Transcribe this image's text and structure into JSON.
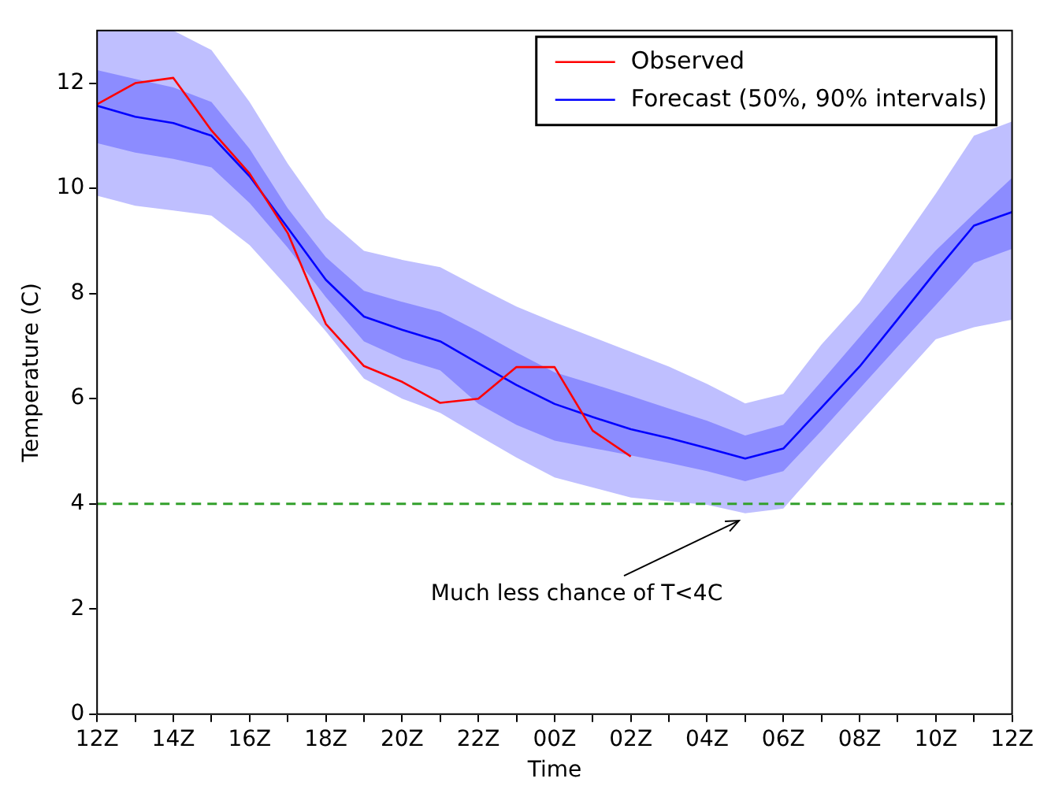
{
  "chart_data": {
    "type": "line",
    "xlabel": "Time",
    "ylabel": "Temperature (C)",
    "categories": [
      "12Z",
      null,
      "14Z",
      null,
      "16Z",
      null,
      "18Z",
      null,
      "20Z",
      null,
      "22Z",
      null,
      "00Z",
      null,
      "02Z",
      null,
      "04Z",
      null,
      "06Z",
      null,
      "08Z",
      null,
      "10Z",
      null,
      "12Z"
    ],
    "ylim": [
      0,
      13
    ],
    "yticks": [
      0,
      2,
      4,
      6,
      8,
      10,
      12
    ],
    "series": [
      {
        "color": "#0000ff",
        "values": [
          null,
          null,
          null,
          null,
          null,
          null,
          null,
          null,
          null,
          null,
          null,
          null,
          null,
          null,
          null,
          null,
          null,
          null,
          null,
          null,
          null,
          null,
          null,
          null,
          null
        ],
        "lower": [
          9.86,
          9.67,
          9.58,
          9.48,
          8.92,
          8.12,
          7.28,
          6.38,
          6.0,
          5.73,
          5.3,
          4.88,
          4.5,
          4.31,
          4.12,
          4.05,
          3.98,
          3.82,
          3.91,
          4.73,
          5.53,
          6.33,
          7.13,
          7.36,
          7.5
        ],
        "upper": [
          13,
          13,
          13,
          12.63,
          11.64,
          10.47,
          9.44,
          8.81,
          8.64,
          8.5,
          8.12,
          7.75,
          7.45,
          7.17,
          6.89,
          6.61,
          6.28,
          5.91,
          6.09,
          7.03,
          7.83,
          8.86,
          9.9,
          11.0,
          11.27
        ]
      },
      {
        "name": "Forecast (50%, 90% intervals)",
        "color": "#0000ff",
        "values": [
          11.57,
          11.36,
          11.24,
          11.0,
          10.23,
          9.25,
          8.26,
          7.56,
          7.31,
          7.09,
          6.67,
          6.26,
          5.9,
          5.65,
          5.42,
          5.25,
          5.06,
          4.86,
          5.05,
          5.83,
          6.61,
          7.51,
          8.42,
          9.29,
          9.55
        ],
        "lower": [
          10.86,
          10.68,
          10.56,
          10.4,
          9.72,
          8.87,
          7.93,
          7.09,
          6.76,
          6.54,
          5.9,
          5.5,
          5.2,
          5.06,
          4.92,
          4.78,
          4.62,
          4.43,
          4.62,
          5.39,
          6.19,
          6.99,
          7.78,
          8.58,
          8.85
        ],
        "upper": [
          12.25,
          12.08,
          11.92,
          11.64,
          10.75,
          9.62,
          8.69,
          8.05,
          7.84,
          7.65,
          7.28,
          6.88,
          6.5,
          6.28,
          6.05,
          5.81,
          5.58,
          5.3,
          5.5,
          6.33,
          7.17,
          8.02,
          8.82,
          9.52,
          10.2
        ]
      },
      {
        "name": "Observed",
        "color": "#ff0000",
        "values": [
          11.6,
          12.0,
          12.1,
          11.1,
          10.28,
          9.15,
          7.42,
          6.62,
          6.32,
          5.92,
          6.0,
          6.6,
          6.6,
          5.39,
          4.9,
          null,
          null,
          null,
          null,
          null,
          null,
          null,
          null,
          null,
          null
        ]
      }
    ],
    "ref_lines": [
      {
        "axis": "y",
        "value": 4,
        "color": "#33a02c",
        "line_style": "dashed"
      }
    ],
    "annotations": [
      "Much less chance of T<4C"
    ],
    "legend": "top right"
  }
}
